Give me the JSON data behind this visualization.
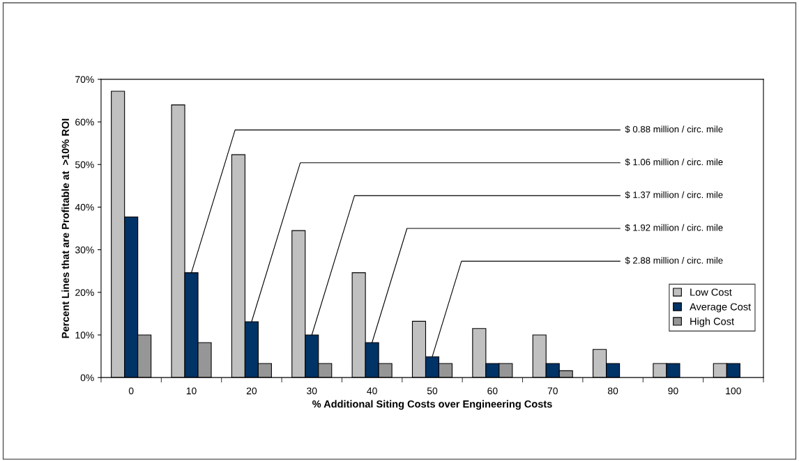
{
  "chart_data": {
    "type": "bar",
    "xlabel": "% Additional Siting Costs over Engineering Costs",
    "ylabel": "Percent Lines that are Profitable at  >10% ROI",
    "categories": [
      "0",
      "10",
      "20",
      "30",
      "40",
      "50",
      "60",
      "70",
      "80",
      "90",
      "100"
    ],
    "series": [
      {
        "name": "Low Cost",
        "color": "#c0c0c0",
        "values": [
          67.2,
          64,
          52.3,
          34.5,
          24.6,
          13.2,
          11.5,
          10,
          6.6,
          3.3,
          3.3
        ]
      },
      {
        "name": "Average Cost",
        "color": "#003366",
        "values": [
          37.7,
          24.6,
          13.1,
          10,
          8.2,
          4.9,
          3.3,
          3.3,
          3.3,
          3.3,
          3.3
        ]
      },
      {
        "name": "High Cost",
        "color": "#969696",
        "values": [
          10,
          8.2,
          3.3,
          3.3,
          3.3,
          3.3,
          3.3,
          1.6,
          0,
          0,
          0
        ]
      }
    ],
    "ylim": [
      0,
      70
    ],
    "yticks": [
      {
        "value": 0,
        "label": "0%"
      },
      {
        "value": 10,
        "label": "10%"
      },
      {
        "value": 20,
        "label": "20%"
      },
      {
        "value": 30,
        "label": "30%"
      },
      {
        "value": 40,
        "label": "40%"
      },
      {
        "value": 50,
        "label": "50%"
      },
      {
        "value": 60,
        "label": "60%"
      },
      {
        "value": 70,
        "label": "70%"
      }
    ],
    "annotations": [
      {
        "text": "$ 0.88 million / circ. mile",
        "x": "10",
        "y": 24.6
      },
      {
        "text": "$ 1.06 million / circ. mile",
        "x": "20",
        "y": 13.1
      },
      {
        "text": "$ 1.37 million / circ. mile",
        "x": "30",
        "y": 10
      },
      {
        "text": "$ 1.92 million / circ. mile",
        "x": "40",
        "y": 8.2
      },
      {
        "text": "$ 2.88 million / circ. mile",
        "x": "50",
        "y": 4.9
      }
    ],
    "legend": "right",
    "grid": false
  }
}
